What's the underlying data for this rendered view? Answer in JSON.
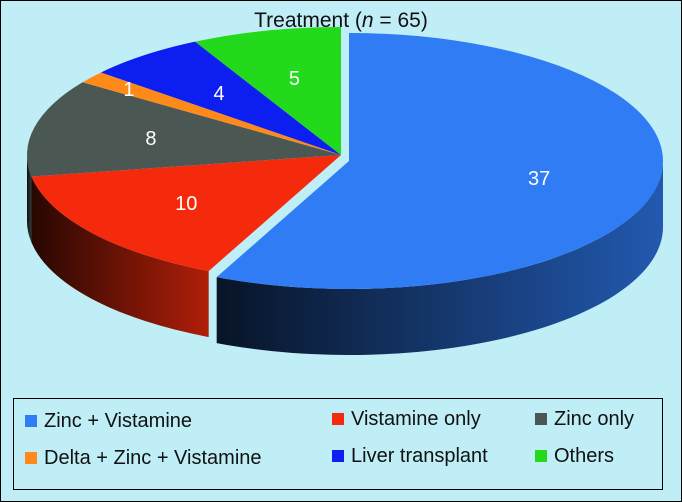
{
  "chart_data": {
    "type": "pie",
    "title_prefix": "Treatment (",
    "title_n_symbol": "n",
    "title_suffix": " = 65)",
    "total": 65,
    "slices": [
      {
        "key": "zinc-vistamine",
        "label": "Zinc + Vistamine",
        "value": 37,
        "color": "#2f7cf5",
        "label_color": "#ffffff"
      },
      {
        "key": "vistamine-only",
        "label": "Vistamine only",
        "value": 10,
        "color": "#f52a0c",
        "label_color": "#ffffff"
      },
      {
        "key": "zinc-only",
        "label": "Zinc only",
        "value": 8,
        "color": "#4a5752",
        "label_color": "#ffffff"
      },
      {
        "key": "delta-zinc-vistamine",
        "label": "Delta + Zinc + Vistamine",
        "value": 1,
        "color": "#ff8a1a",
        "label_color": "#ffffff"
      },
      {
        "key": "liver-transplant",
        "label": "Liver transplant",
        "value": 4,
        "color": "#0d1ef0",
        "label_color": "#ffffff"
      },
      {
        "key": "others",
        "label": "Others",
        "value": 5,
        "color": "#22d91c",
        "label_color": "#ffffff"
      }
    ],
    "legend_position": "bottom",
    "style": "3d-exploded-pie"
  }
}
